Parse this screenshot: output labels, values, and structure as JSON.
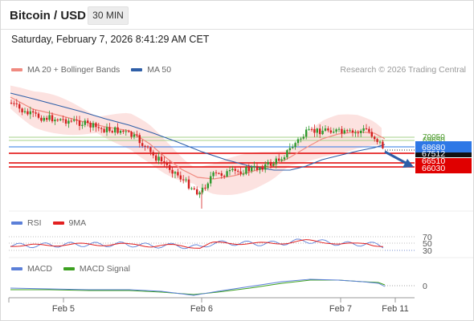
{
  "header": {
    "title": "Bitcoin / USD",
    "timeframe": "30 MIN"
  },
  "timestamp": "Saturday, February 7, 2026 8:41:29 AM CET",
  "credit": "Research © 2026 Trading Central",
  "legend_main": [
    {
      "label": "MA 20 + Bollinger Bands",
      "color": "#f08a80"
    },
    {
      "label": "MA 50",
      "color": "#2f5fa8"
    }
  ],
  "legend_rsi": [
    {
      "label": "RSI",
      "color": "#5b7fd8"
    },
    {
      "label": "9MA",
      "color": "#e22020"
    }
  ],
  "legend_macd": [
    {
      "label": "MACD",
      "color": "#5b7fd8"
    },
    {
      "label": "MACD Signal",
      "color": "#3ca020"
    }
  ],
  "levels": {
    "resistance_1": "70050",
    "resistance_2": "69650",
    "pivot": "68680",
    "support_1": "67512",
    "support_2": "66510",
    "support_3": "66030"
  },
  "rsi_levels": [
    "70",
    "50",
    "30"
  ],
  "macd_zero": "0",
  "x_labels": [
    "Feb 5",
    "Feb 6",
    "Feb 7",
    "Feb 11"
  ],
  "colors": {
    "up": "#2e9a2e",
    "down": "#d42020",
    "pivot": "#2e78e6",
    "support": "#e00000",
    "resistance": "#a6d08a",
    "band": "#fbd8d6",
    "arrow": "#2c5ea8"
  },
  "chart_data": [
    {
      "type": "candlestick",
      "title": "Bitcoin / USD",
      "timeframe": "30 MIN",
      "x_ticks": [
        "Feb 5",
        "Feb 6",
        "Feb 7",
        "Feb 11"
      ],
      "levels": [
        70050,
        69650,
        68680,
        67512,
        66510,
        66030
      ],
      "series": [
        {
          "name": "MA 20 + Bollinger Bands"
        },
        {
          "name": "MA 50"
        }
      ]
    },
    {
      "type": "line",
      "series": [
        {
          "name": "RSI"
        },
        {
          "name": "9MA"
        }
      ],
      "y_levels": [
        70,
        50,
        30
      ]
    },
    {
      "type": "line",
      "series": [
        {
          "name": "MACD"
        },
        {
          "name": "MACD Signal"
        }
      ],
      "y_levels": [
        0
      ]
    }
  ]
}
